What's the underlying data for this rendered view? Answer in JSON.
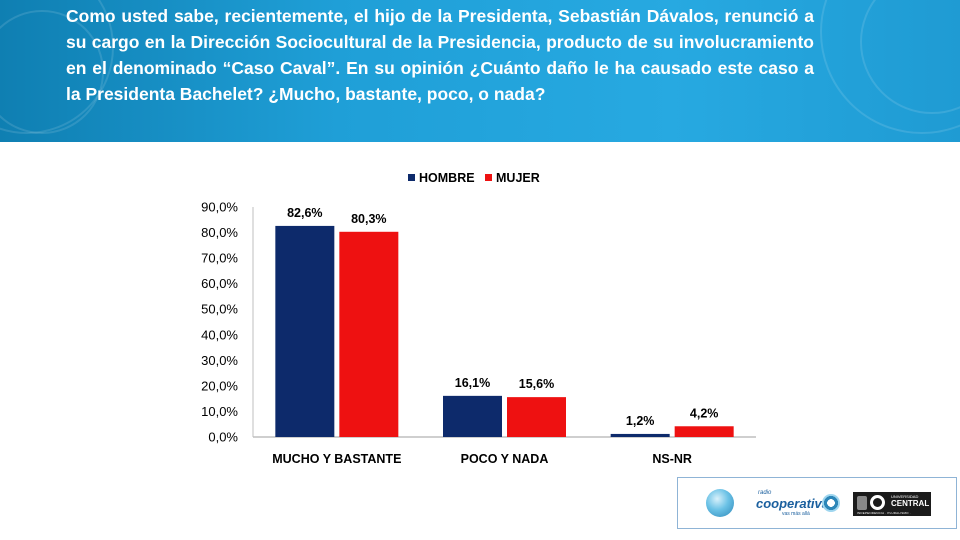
{
  "question": "Como usted sabe, recientemente, el hijo de la Presidenta, Sebastián Dávalos, renunció a su cargo en la Dirección Sociocultural de la Presidencia, producto de su involucramiento en el denominado “Caso Caval”. En su opinión ¿Cuánto daño le ha causado este caso a la Presidenta Bachelet? ¿Mucho, bastante, poco, o nada?",
  "chart_data": {
    "type": "bar",
    "title": "",
    "xlabel": "",
    "ylabel": "",
    "categories": [
      "MUCHO Y BASTANTE",
      "POCO Y NADA",
      "NS-NR"
    ],
    "series": [
      {
        "name": "HOMBRE",
        "color": "#0d2a6b",
        "values": [
          82.6,
          16.1,
          1.2
        ],
        "labels": [
          "82,6%",
          "16,1%",
          "1,2%"
        ]
      },
      {
        "name": "MUJER",
        "color": "#ee1111",
        "values": [
          80.3,
          15.6,
          4.2
        ],
        "labels": [
          "80,3%",
          "15,6%",
          "4,2%"
        ]
      }
    ],
    "ylim": [
      0,
      90
    ],
    "yticks": [
      "0,0%",
      "10,0%",
      "20,0%",
      "30,0%",
      "40,0%",
      "50,0%",
      "60,0%",
      "70,0%",
      "80,0%",
      "90,0%"
    ],
    "legend_position": "top",
    "grid": false
  },
  "logos": {
    "cooperativa": {
      "small": "radio",
      "name": "cooperativa",
      "tagline": "vas más allá"
    },
    "ucentral": {
      "top": "UNIVERSIDAD",
      "name": "CENTRAL",
      "tagline": "INDEPENDENCIA · PLURALISMO · COMPROMISO"
    }
  }
}
